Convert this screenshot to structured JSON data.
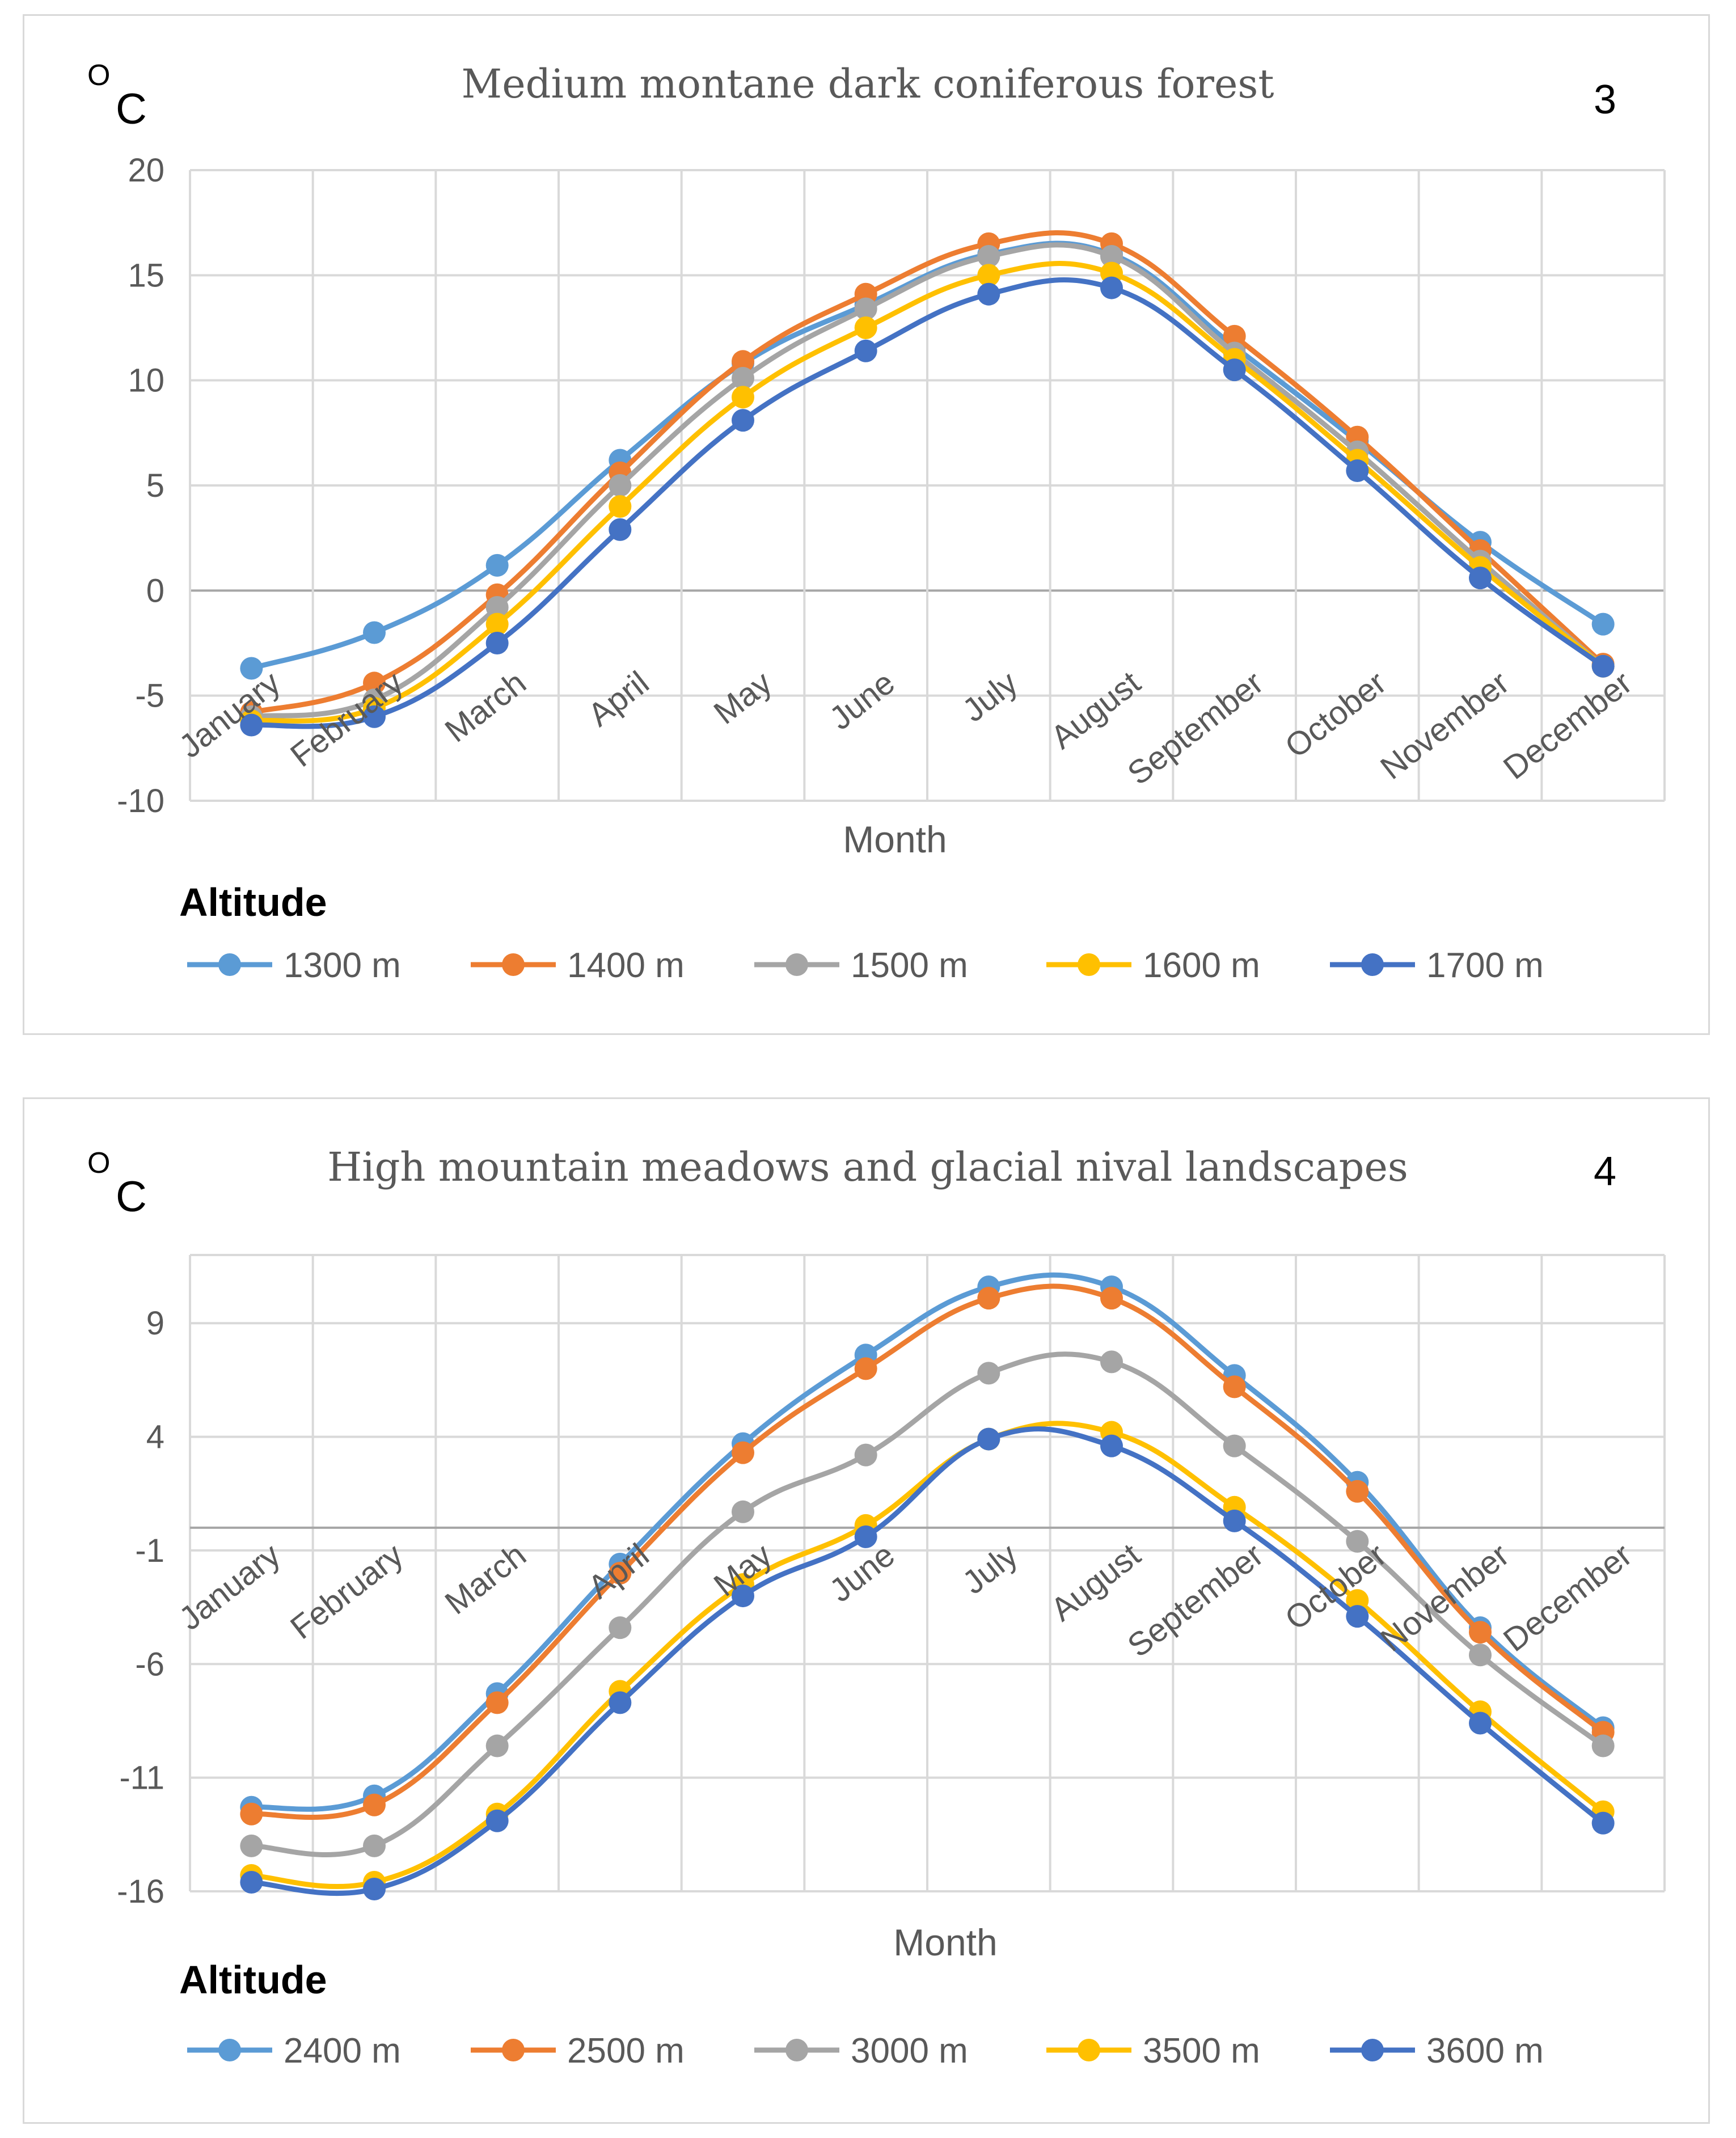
{
  "chart_data": [
    {
      "type": "line",
      "title": "Medium montane dark coniferous forest",
      "unit_o": "O",
      "unit_c": "C",
      "panel_number": "3",
      "xlabel": "Month",
      "ylabel": "°C",
      "ylim": [
        -10,
        20
      ],
      "yticks": [
        20,
        15,
        10,
        5,
        0,
        -5,
        -10
      ],
      "categories": [
        "January",
        "February",
        "March",
        "April",
        "May",
        "June",
        "July",
        "August",
        "September",
        "October",
        "November",
        "December"
      ],
      "legend_title": "Altitude",
      "series": [
        {
          "name": "1300 m",
          "color": "#5b9bd5",
          "values": [
            -3.7,
            -2.0,
            1.2,
            6.2,
            10.8,
            13.6,
            16.0,
            16.0,
            11.6,
            7.1,
            2.3,
            -1.6
          ]
        },
        {
          "name": "1400 m",
          "color": "#ed7d31",
          "values": [
            -5.8,
            -4.4,
            -0.2,
            5.6,
            10.9,
            14.1,
            16.5,
            16.5,
            12.1,
            7.3,
            1.9,
            -3.5
          ]
        },
        {
          "name": "1500 m",
          "color": "#a5a5a5",
          "values": [
            -6.0,
            -5.2,
            -0.8,
            5.0,
            10.1,
            13.4,
            15.9,
            15.9,
            11.3,
            6.6,
            1.4,
            -3.6
          ]
        },
        {
          "name": "1600 m",
          "color": "#ffc000",
          "values": [
            -6.2,
            -5.6,
            -1.6,
            4.0,
            9.2,
            12.5,
            15.0,
            15.1,
            11.0,
            6.2,
            1.1,
            -3.6
          ]
        },
        {
          "name": "1700 m",
          "color": "#4472c4",
          "values": [
            -6.4,
            -6.0,
            -2.5,
            2.9,
            8.1,
            11.4,
            14.1,
            14.4,
            10.5,
            5.7,
            0.6,
            -3.6
          ]
        }
      ]
    },
    {
      "type": "line",
      "title": "High mountain meadows and glacial nival landscapes",
      "unit_o": "O",
      "unit_c": "C",
      "panel_number": "4",
      "xlabel": "Month",
      "ylabel": "°C",
      "ylim": [
        -16,
        12
      ],
      "yticks": [
        9,
        4,
        -1,
        -6,
        -11,
        -16
      ],
      "categories": [
        "January",
        "February",
        "March",
        "April",
        "May",
        "June",
        "July",
        "August",
        "September",
        "October",
        "November",
        "December"
      ],
      "legend_title": "Altitude",
      "series": [
        {
          "name": "2400 m",
          "color": "#5b9bd5",
          "values": [
            -12.3,
            -11.8,
            -7.3,
            -1.6,
            3.7,
            7.6,
            10.6,
            10.6,
            6.7,
            2.0,
            -4.4,
            -8.8
          ]
        },
        {
          "name": "2500 m",
          "color": "#ed7d31",
          "values": [
            -12.6,
            -12.2,
            -7.7,
            -2.0,
            3.3,
            7.0,
            10.1,
            10.1,
            6.2,
            1.6,
            -4.6,
            -9.0
          ]
        },
        {
          "name": "3000 m",
          "color": "#a5a5a5",
          "values": [
            -14.0,
            -14.0,
            -9.6,
            -4.4,
            0.7,
            3.2,
            6.8,
            7.3,
            3.6,
            -0.6,
            -5.6,
            -9.6
          ]
        },
        {
          "name": "3500 m",
          "color": "#ffc000",
          "values": [
            -15.3,
            -15.6,
            -12.6,
            -7.2,
            -2.5,
            0.1,
            3.9,
            4.2,
            0.9,
            -3.2,
            -8.1,
            -12.5
          ]
        },
        {
          "name": "3600 m",
          "color": "#4472c4",
          "values": [
            -15.6,
            -15.9,
            -12.9,
            -7.7,
            -3.0,
            -0.4,
            3.9,
            3.6,
            0.3,
            -3.9,
            -8.6,
            -13.0
          ]
        }
      ]
    }
  ]
}
